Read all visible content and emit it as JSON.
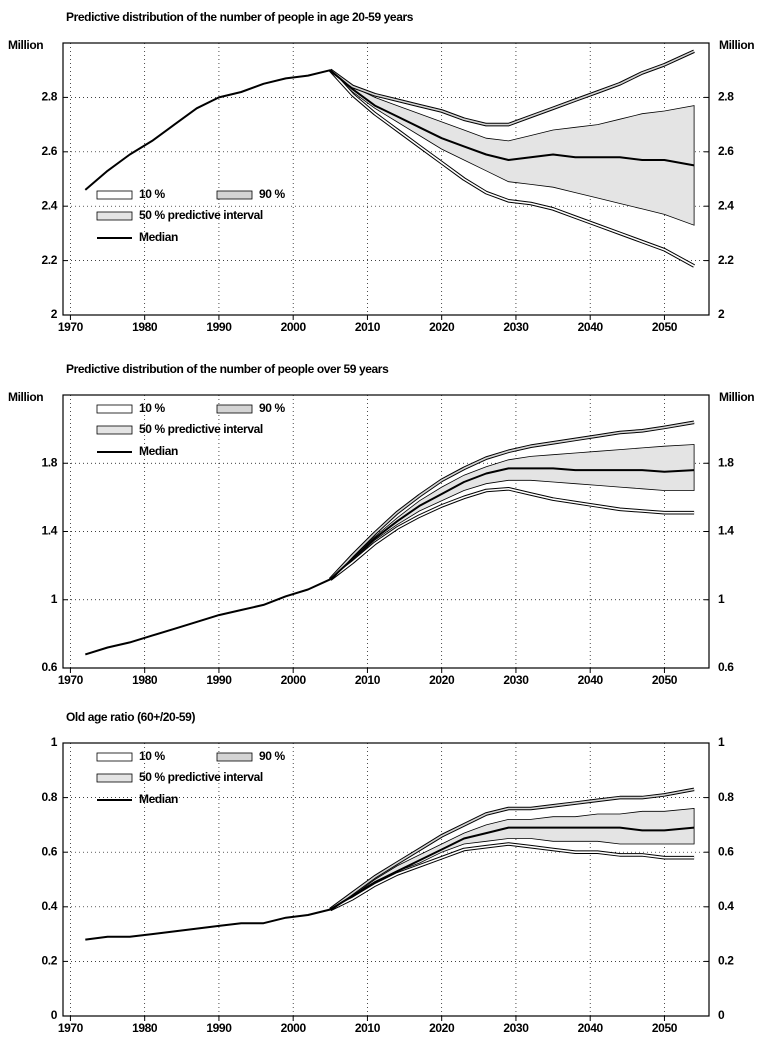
{
  "chart_data": [
    {
      "type": "line",
      "title": "Predictive distribution of the number of people in age 20-59 years",
      "ylabel": "Million",
      "x": [
        1972,
        1975,
        1978,
        1981,
        1984,
        1987,
        1990,
        1993,
        1996,
        1999,
        2002,
        2005,
        2008,
        2011,
        2014,
        2017,
        2020,
        2023,
        2026,
        2029,
        2032,
        2035,
        2038,
        2041,
        2044,
        2047,
        2050,
        2054
      ],
      "xlim": [
        1969,
        2056
      ],
      "xticks": [
        1970,
        1980,
        1990,
        2000,
        2010,
        2020,
        2030,
        2040,
        2050
      ],
      "ylim": [
        2,
        3
      ],
      "yticks": [
        2,
        2.2,
        2.4,
        2.6,
        2.8
      ],
      "grid": true,
      "legend": "lower left",
      "series": [
        {
          "name": "10 %",
          "color": "#ffffff",
          "values": [
            null,
            null,
            null,
            null,
            null,
            null,
            null,
            null,
            null,
            null,
            null,
            2.9,
            2.81,
            2.74,
            2.68,
            2.62,
            2.56,
            2.5,
            2.45,
            2.42,
            2.41,
            2.39,
            2.36,
            2.33,
            2.3,
            2.27,
            2.24,
            2.18
          ]
        },
        {
          "name": "90 %",
          "color": "#d4d4d4",
          "values": [
            null,
            null,
            null,
            null,
            null,
            null,
            null,
            null,
            null,
            null,
            null,
            2.9,
            2.84,
            2.81,
            2.79,
            2.77,
            2.75,
            2.72,
            2.7,
            2.7,
            2.73,
            2.76,
            2.79,
            2.82,
            2.85,
            2.89,
            2.92,
            2.97
          ]
        },
        {
          "name": "50 % predictive interval",
          "color": "#e4e4e4",
          "values": [
            null,
            null,
            null,
            null,
            null,
            null,
            null,
            null,
            null,
            null,
            null,
            2.9,
            2.84,
            2.8,
            2.77,
            2.74,
            2.71,
            2.68,
            2.65,
            2.64,
            2.66,
            2.68,
            2.69,
            2.7,
            2.72,
            2.74,
            2.75,
            2.77
          ],
          "low": [
            null,
            null,
            null,
            null,
            null,
            null,
            null,
            null,
            null,
            null,
            null,
            2.9,
            2.82,
            2.76,
            2.71,
            2.66,
            2.61,
            2.57,
            2.53,
            2.49,
            2.48,
            2.47,
            2.45,
            2.43,
            2.41,
            2.39,
            2.37,
            2.33
          ]
        },
        {
          "name": "Median",
          "color": "#000000",
          "values": [
            2.46,
            2.53,
            2.59,
            2.64,
            2.7,
            2.76,
            2.8,
            2.82,
            2.85,
            2.87,
            2.88,
            2.9,
            2.83,
            2.77,
            2.73,
            2.69,
            2.65,
            2.62,
            2.59,
            2.57,
            2.58,
            2.59,
            2.58,
            2.58,
            2.58,
            2.57,
            2.57,
            2.55
          ]
        }
      ]
    },
    {
      "type": "line",
      "title": "Predictive distribution of the number of people over 59 years",
      "ylabel": "Million",
      "x": [
        1972,
        1975,
        1978,
        1981,
        1984,
        1987,
        1990,
        1993,
        1996,
        1999,
        2002,
        2005,
        2008,
        2011,
        2014,
        2017,
        2020,
        2023,
        2026,
        2029,
        2032,
        2035,
        2038,
        2041,
        2044,
        2047,
        2050,
        2054
      ],
      "xlim": [
        1969,
        2056
      ],
      "xticks": [
        1970,
        1980,
        1990,
        2000,
        2010,
        2020,
        2030,
        2040,
        2050
      ],
      "ylim": [
        0.6,
        2.2
      ],
      "yticks": [
        0.6,
        1,
        1.4,
        1.8
      ],
      "grid": true,
      "legend": "upper left",
      "series": [
        {
          "name": "10 %",
          "color": "#ffffff",
          "values": [
            null,
            null,
            null,
            null,
            null,
            null,
            null,
            null,
            null,
            null,
            null,
            1.12,
            1.22,
            1.33,
            1.42,
            1.49,
            1.55,
            1.6,
            1.64,
            1.65,
            1.62,
            1.59,
            1.57,
            1.55,
            1.53,
            1.52,
            1.51,
            1.51
          ]
        },
        {
          "name": "90 %",
          "color": "#d4d4d4",
          "values": [
            null,
            null,
            null,
            null,
            null,
            null,
            null,
            null,
            null,
            null,
            null,
            1.12,
            1.26,
            1.39,
            1.51,
            1.61,
            1.7,
            1.77,
            1.83,
            1.87,
            1.9,
            1.92,
            1.94,
            1.96,
            1.98,
            1.99,
            2.01,
            2.04
          ]
        },
        {
          "name": "50 % predictive interval",
          "color": "#e4e4e4",
          "values": [
            null,
            null,
            null,
            null,
            null,
            null,
            null,
            null,
            null,
            null,
            null,
            1.12,
            1.25,
            1.37,
            1.48,
            1.58,
            1.66,
            1.73,
            1.78,
            1.82,
            1.84,
            1.85,
            1.86,
            1.87,
            1.88,
            1.89,
            1.9,
            1.91
          ],
          "low": [
            null,
            null,
            null,
            null,
            null,
            null,
            null,
            null,
            null,
            null,
            null,
            1.12,
            1.23,
            1.35,
            1.44,
            1.52,
            1.58,
            1.64,
            1.68,
            1.7,
            1.7,
            1.69,
            1.68,
            1.67,
            1.66,
            1.65,
            1.64,
            1.64
          ]
        },
        {
          "name": "Median",
          "color": "#000000",
          "values": [
            0.68,
            0.72,
            0.75,
            0.79,
            0.83,
            0.87,
            0.91,
            0.94,
            0.97,
            1.02,
            1.06,
            1.12,
            1.24,
            1.36,
            1.46,
            1.55,
            1.62,
            1.69,
            1.74,
            1.77,
            1.77,
            1.77,
            1.76,
            1.76,
            1.76,
            1.76,
            1.75,
            1.76
          ]
        }
      ]
    },
    {
      "type": "line",
      "title": "Old age ratio (60+/20-59)",
      "x": [
        1972,
        1975,
        1978,
        1981,
        1984,
        1987,
        1990,
        1993,
        1996,
        1999,
        2002,
        2005,
        2008,
        2011,
        2014,
        2017,
        2020,
        2023,
        2026,
        2029,
        2032,
        2035,
        2038,
        2041,
        2044,
        2047,
        2050,
        2054
      ],
      "xlim": [
        1969,
        2056
      ],
      "xticks": [
        1970,
        1980,
        1990,
        2000,
        2010,
        2020,
        2030,
        2040,
        2050
      ],
      "ylim": [
        0,
        1
      ],
      "yticks": [
        0,
        0.2,
        0.4,
        0.6,
        0.8,
        1
      ],
      "grid": true,
      "legend": "upper left",
      "series": [
        {
          "name": "10 %",
          "color": "#ffffff",
          "values": [
            null,
            null,
            null,
            null,
            null,
            null,
            null,
            null,
            null,
            null,
            null,
            0.39,
            0.43,
            0.48,
            0.52,
            0.55,
            0.58,
            0.61,
            0.62,
            0.63,
            0.62,
            0.61,
            0.6,
            0.6,
            0.59,
            0.59,
            0.58,
            0.58
          ]
        },
        {
          "name": "90 %",
          "color": "#d4d4d4",
          "values": [
            null,
            null,
            null,
            null,
            null,
            null,
            null,
            null,
            null,
            null,
            null,
            0.39,
            0.45,
            0.51,
            0.56,
            0.61,
            0.66,
            0.7,
            0.74,
            0.76,
            0.76,
            0.77,
            0.78,
            0.79,
            0.8,
            0.8,
            0.81,
            0.83
          ]
        },
        {
          "name": "50 % predictive interval",
          "color": "#e4e4e4",
          "values": [
            null,
            null,
            null,
            null,
            null,
            null,
            null,
            null,
            null,
            null,
            null,
            0.39,
            0.44,
            0.5,
            0.55,
            0.59,
            0.63,
            0.67,
            0.7,
            0.72,
            0.72,
            0.73,
            0.73,
            0.74,
            0.74,
            0.75,
            0.75,
            0.76
          ],
          "low": [
            null,
            null,
            null,
            null,
            null,
            null,
            null,
            null,
            null,
            null,
            null,
            0.39,
            0.44,
            0.49,
            0.53,
            0.56,
            0.6,
            0.63,
            0.64,
            0.65,
            0.65,
            0.64,
            0.64,
            0.64,
            0.63,
            0.63,
            0.63,
            0.63
          ]
        },
        {
          "name": "Median",
          "color": "#000000",
          "values": [
            0.28,
            0.29,
            0.29,
            0.3,
            0.31,
            0.32,
            0.33,
            0.34,
            0.34,
            0.36,
            0.37,
            0.39,
            0.44,
            0.49,
            0.53,
            0.57,
            0.61,
            0.65,
            0.67,
            0.69,
            0.69,
            0.69,
            0.69,
            0.69,
            0.69,
            0.68,
            0.68,
            0.69
          ]
        }
      ]
    }
  ]
}
